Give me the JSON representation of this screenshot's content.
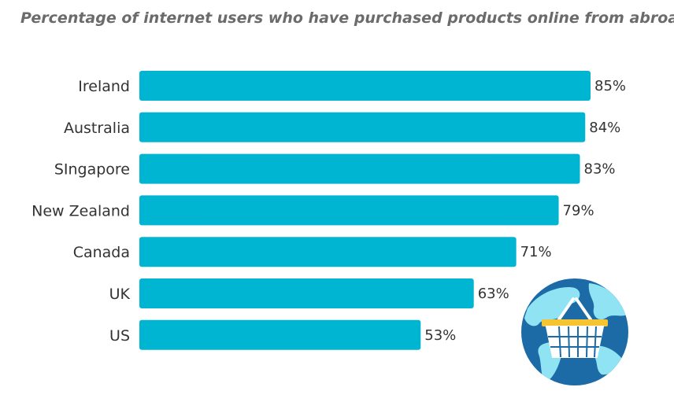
{
  "chart_data": {
    "type": "bar",
    "orientation": "horizontal",
    "title": "Percentage of internet users who have purchased products online from abroad",
    "categories": [
      "Ireland",
      "Australia",
      "SIngapore",
      "New Zealand",
      "Canada",
      "UK",
      "US"
    ],
    "values": [
      85,
      84,
      83,
      79,
      71,
      63,
      53
    ],
    "value_labels": [
      "85%",
      "84%",
      "83%",
      "79%",
      "71%",
      "63%",
      "53%"
    ],
    "unit": "%",
    "xlim": [
      0,
      85
    ],
    "bar_color": "#00b5d1",
    "grid": false,
    "legend": "none"
  },
  "illustration": {
    "name": "globe-with-shopping-basket",
    "colors": {
      "ocean": "#1c6aa6",
      "land": "#8fe3f2",
      "basket": "#ffffff",
      "handle": "#f5c430"
    }
  }
}
